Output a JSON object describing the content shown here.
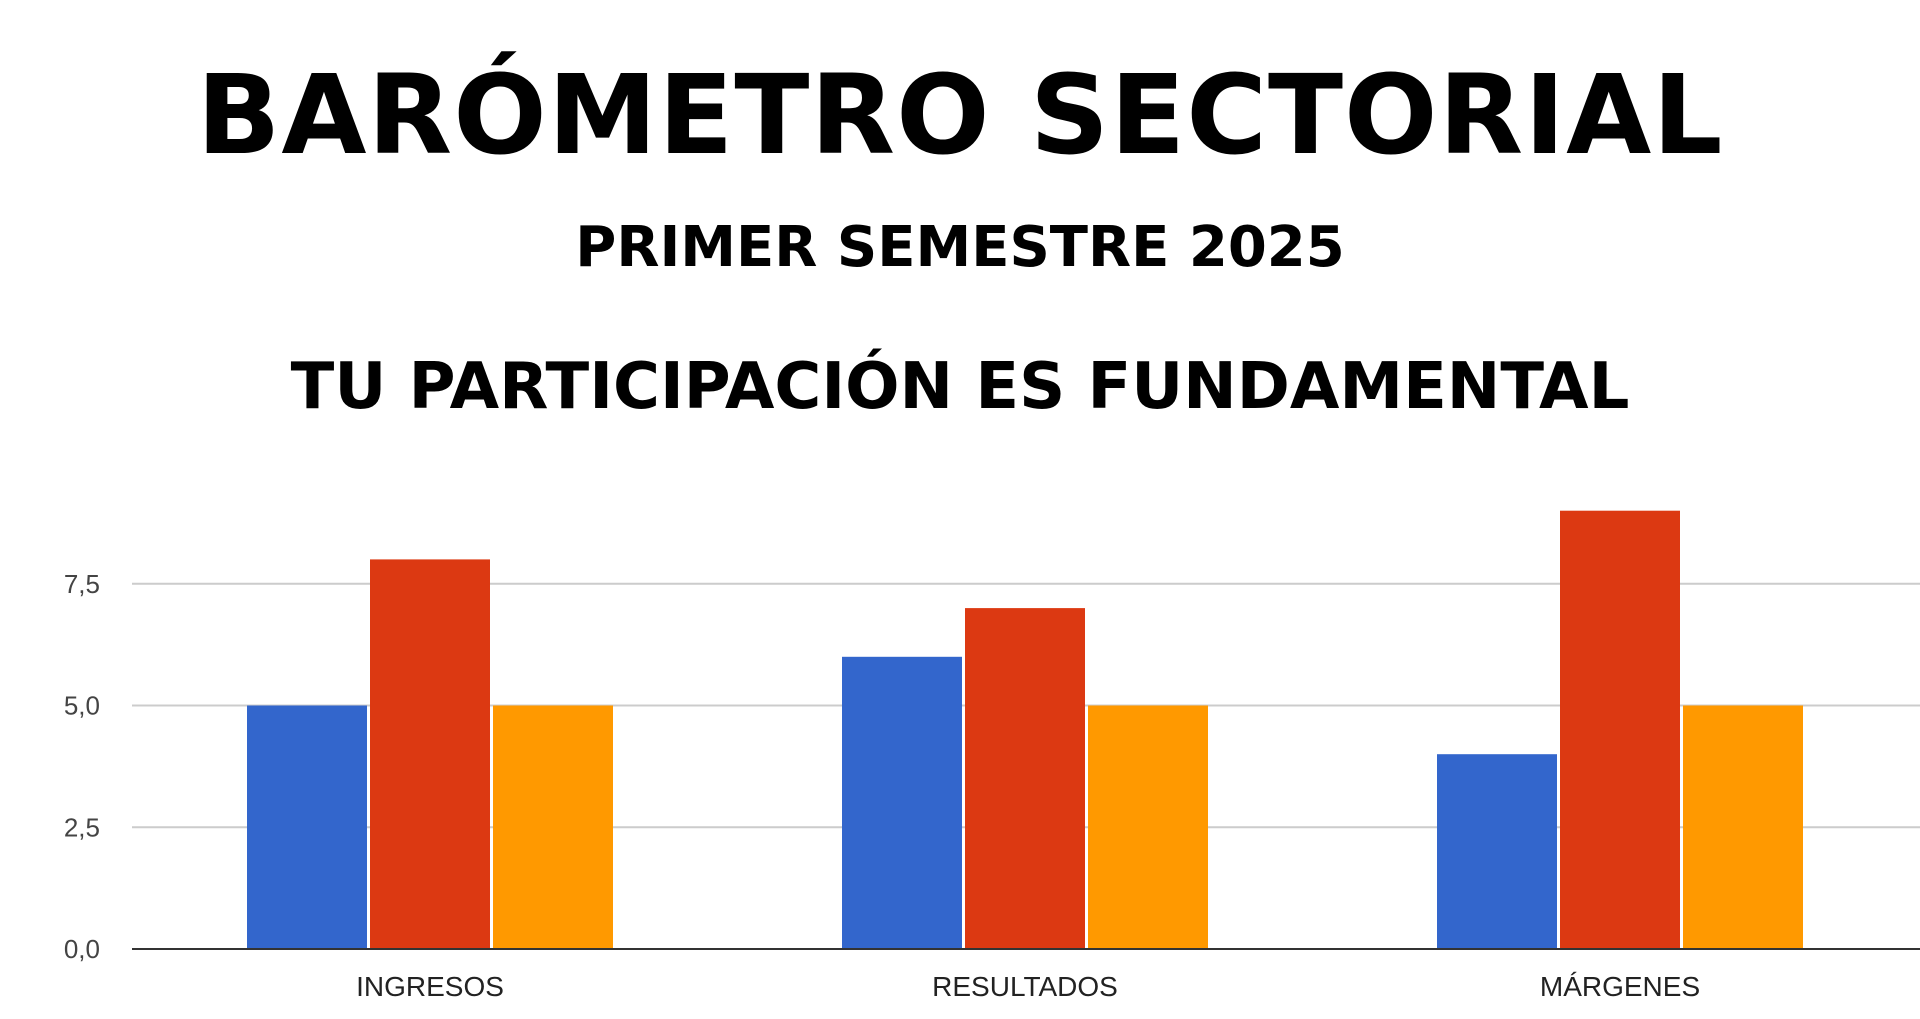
{
  "page": {
    "title": "BARÓMETRO SECTORIAL",
    "subtitle": "PRIMER SEMESTRE 2025",
    "tagline": "TU PARTICIPACIÓN ES FUNDAMENTAL"
  },
  "chart_data": {
    "type": "bar",
    "categories": [
      "INGRESOS",
      "RESULTADOS",
      "MÁRGENES"
    ],
    "series": [
      {
        "color": "#3366cc",
        "values": [
          5,
          6,
          4
        ]
      },
      {
        "color": "#dc3912",
        "values": [
          8,
          7,
          9
        ]
      },
      {
        "color": "#ff9900",
        "values": [
          5,
          5,
          5
        ]
      }
    ],
    "yticks": [
      "0,0",
      "2,5",
      "5,0",
      "7,5"
    ],
    "ytick_values": [
      0,
      2.5,
      5,
      7.5
    ],
    "ylim": [
      0,
      9.5
    ],
    "grid": true,
    "legend": false,
    "xlabel": "",
    "ylabel": ""
  }
}
